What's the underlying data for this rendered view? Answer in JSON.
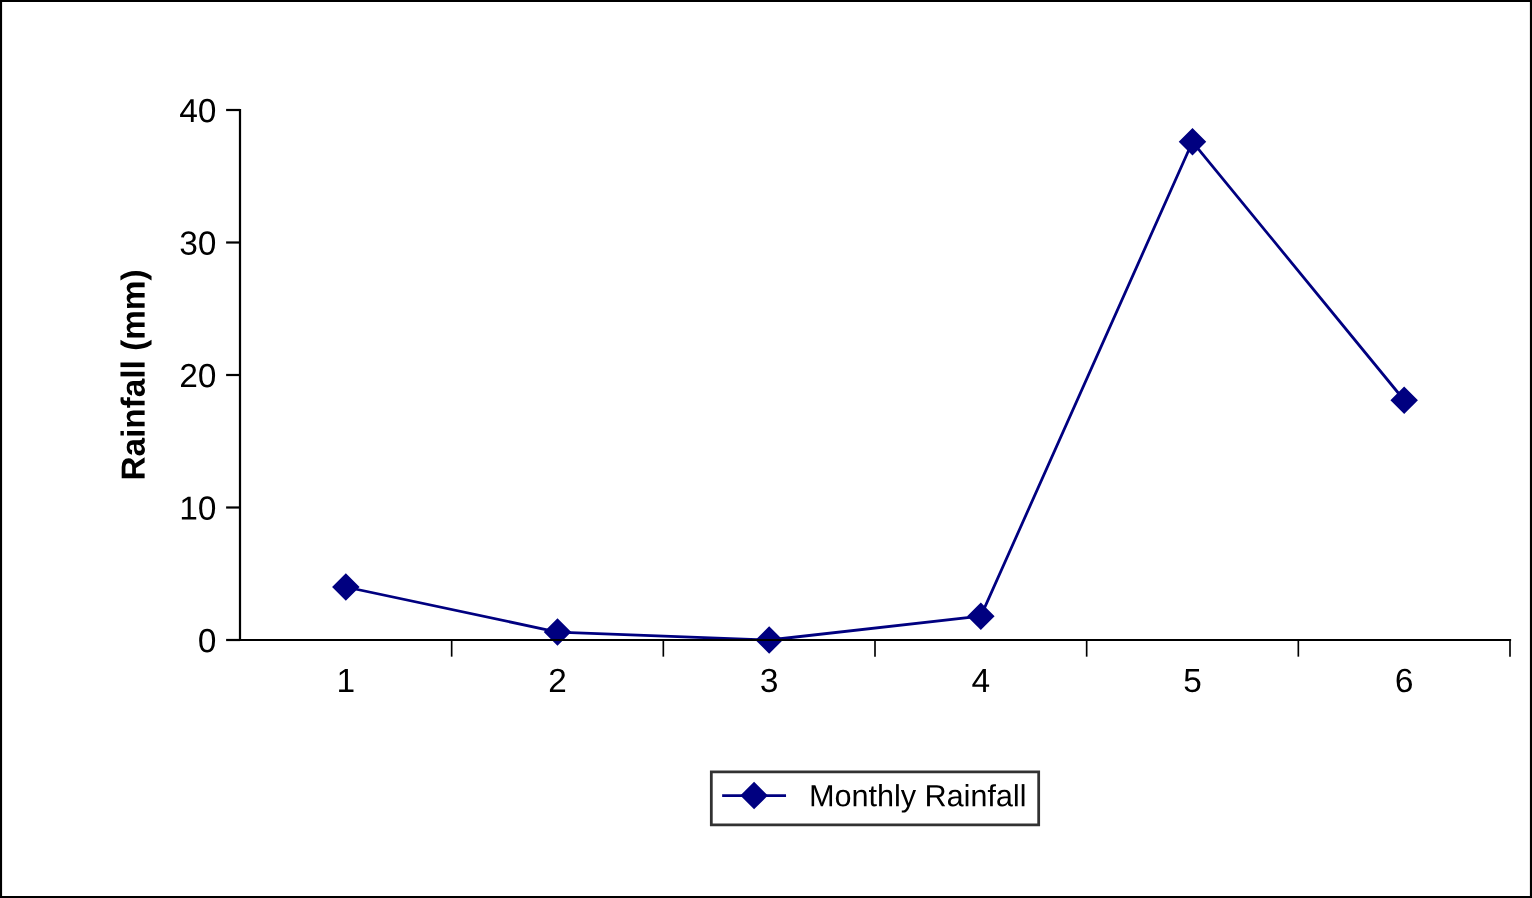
{
  "chart_data": {
    "type": "line",
    "ylabel": "Rainfall (mm)",
    "categories": [
      "1",
      "2",
      "3",
      "4",
      "5",
      "6"
    ],
    "series": [
      {
        "name": "Monthly Rainfall",
        "color": "#000080",
        "values": [
          4,
          0.6,
          0,
          1.8,
          37.6,
          18.1
        ]
      }
    ],
    "ylim": [
      0,
      40
    ],
    "yticks": [
      0,
      10,
      20,
      30,
      40
    ],
    "grid": false,
    "legend": "bottom",
    "marker": "diamond",
    "line_style": "solid"
  }
}
